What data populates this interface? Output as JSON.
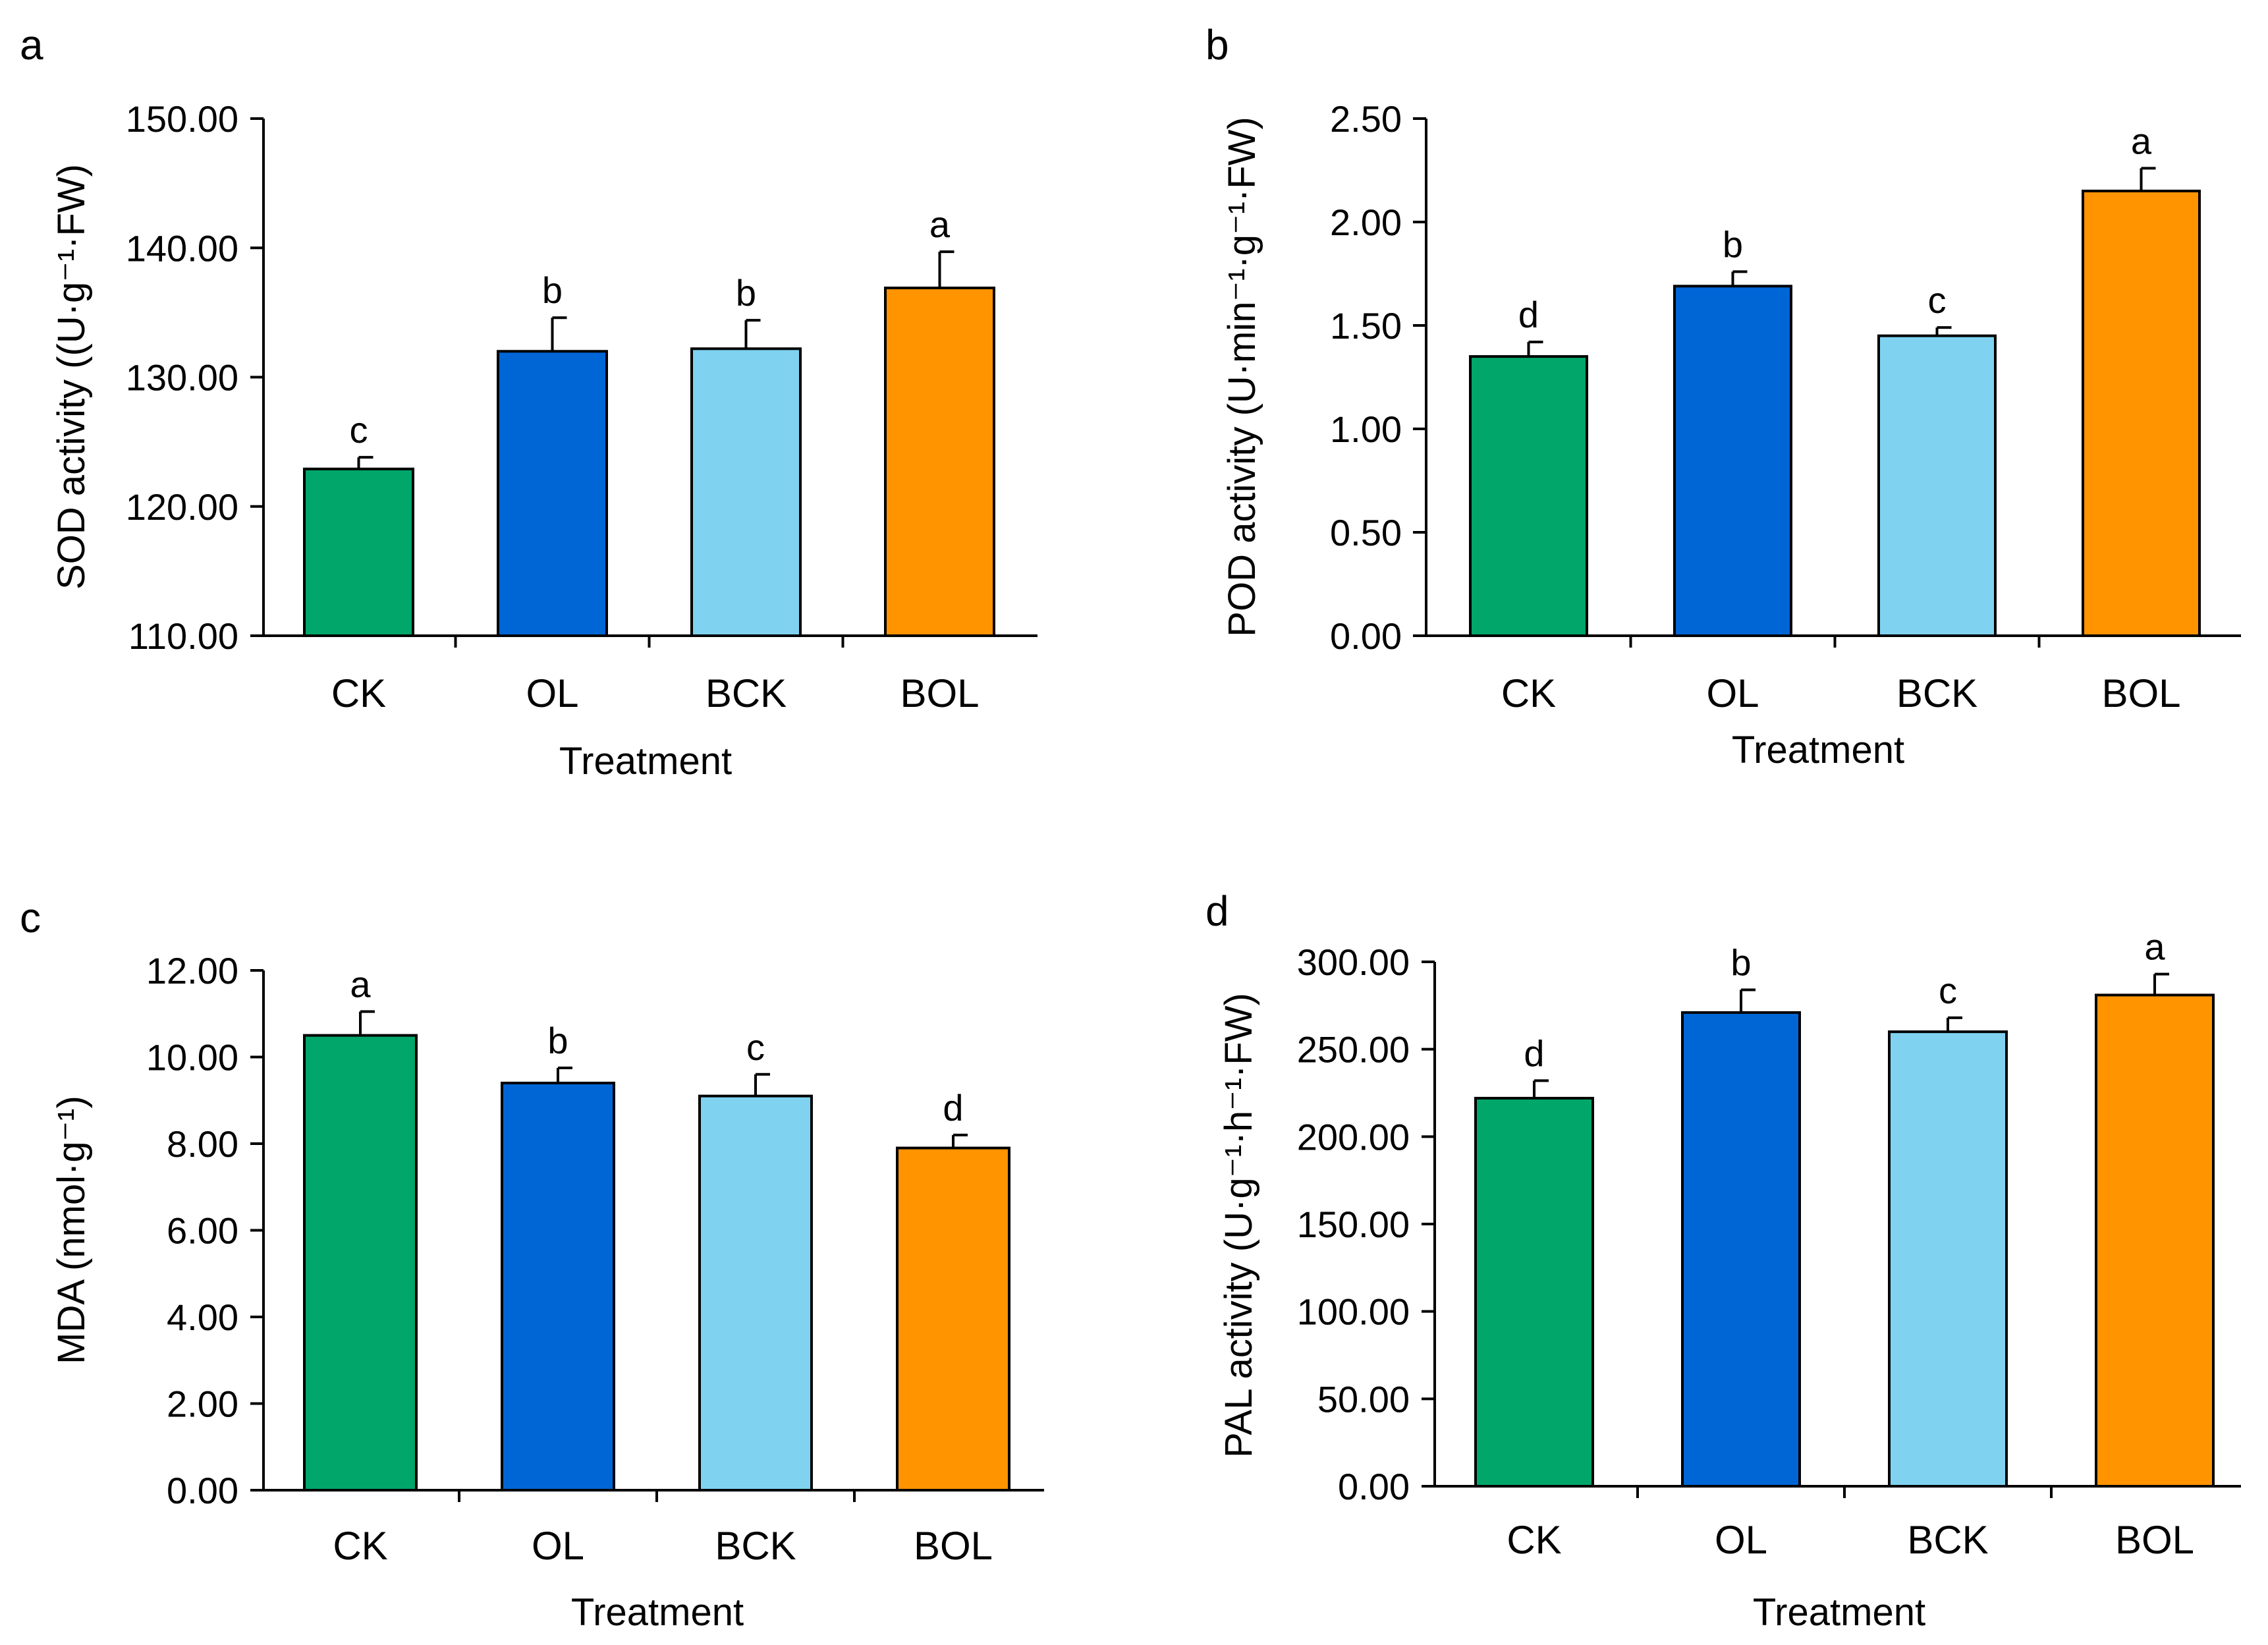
{
  "colors": {
    "CK": "#00a66a",
    "OL": "#0066d6",
    "BCK": "#7fd2f0",
    "BOL": "#ff9400",
    "outline": "#000000"
  },
  "chart_data": [
    {
      "type": "bar",
      "panel": "a",
      "categories": [
        "CK",
        "OL",
        "BCK",
        "BOL"
      ],
      "values": [
        122.9,
        132.0,
        132.2,
        136.9
      ],
      "errors": [
        0.9,
        2.6,
        2.2,
        2.8
      ],
      "significance": [
        "c",
        "b",
        "b",
        "a"
      ],
      "ylim": [
        110,
        150
      ],
      "yticks": [
        "110.00",
        "120.00",
        "130.00",
        "140.00",
        "150.00"
      ],
      "xlabel": "Treatment",
      "ylabel": "SOD activity  ((U·g⁻¹·FW)",
      "legend": "none",
      "grid": false
    },
    {
      "type": "bar",
      "panel": "b",
      "categories": [
        "CK",
        "OL",
        "BCK",
        "BOL"
      ],
      "values": [
        1.35,
        1.69,
        1.45,
        2.15
      ],
      "errors": [
        0.07,
        0.07,
        0.04,
        0.11
      ],
      "significance": [
        "d",
        "b",
        "c",
        "a"
      ],
      "ylim": [
        0,
        2.5
      ],
      "yticks": [
        "0.00",
        "0.50",
        "1.00",
        "1.50",
        "2.00",
        "2.50"
      ],
      "xlabel": "Treatment",
      "ylabel": "POD activity (U·min⁻¹·g⁻¹·FW)",
      "legend": "none",
      "grid": false
    },
    {
      "type": "bar",
      "panel": "c",
      "categories": [
        "CK",
        "OL",
        "BCK",
        "BOL"
      ],
      "values": [
        10.5,
        9.4,
        9.1,
        7.9
      ],
      "errors": [
        0.55,
        0.35,
        0.5,
        0.3
      ],
      "significance": [
        "a",
        "b",
        "c",
        "d"
      ],
      "ylim": [
        0,
        12
      ],
      "yticks": [
        "0.00",
        "2.00",
        "4.00",
        "6.00",
        "8.00",
        "10.00",
        "12.00"
      ],
      "xlabel": "Treatment",
      "ylabel": "MDA (nmol·g⁻¹)",
      "legend": "none",
      "grid": false
    },
    {
      "type": "bar",
      "panel": "d",
      "categories": [
        "CK",
        "OL",
        "BCK",
        "BOL"
      ],
      "values": [
        222,
        271,
        260,
        281
      ],
      "errors": [
        10,
        13,
        8,
        12
      ],
      "significance": [
        "d",
        "b",
        "c",
        "a"
      ],
      "ylim": [
        0,
        300
      ],
      "yticks": [
        "0.00",
        "50.00",
        "100.00",
        "150.00",
        "200.00",
        "250.00",
        "300.00"
      ],
      "xlabel": "Treatment",
      "ylabel": "PAL activity (U·g⁻¹·h⁻¹·FW)",
      "legend": "none",
      "grid": false
    }
  ]
}
